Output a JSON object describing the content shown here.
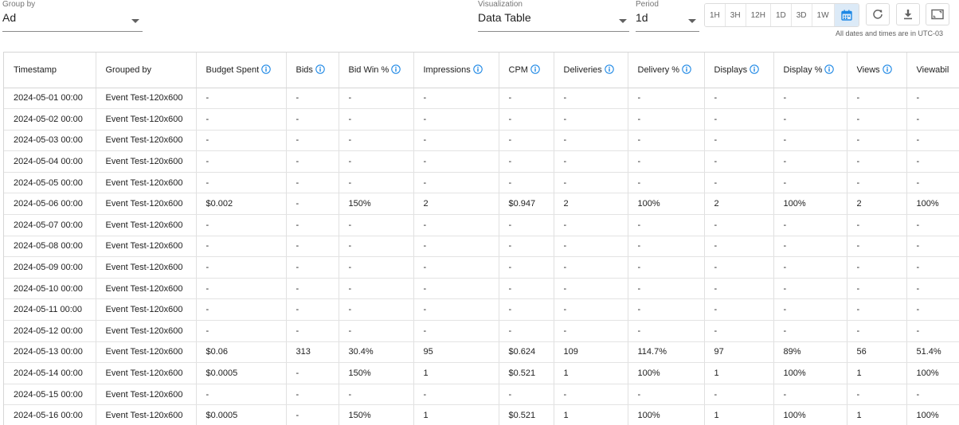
{
  "controls": {
    "group_by": {
      "label": "Group by",
      "value": "Ad"
    },
    "visualization": {
      "label": "Visualization",
      "value": "Data Table"
    },
    "period": {
      "label": "Period",
      "value": "1d"
    },
    "ranges": [
      "1H",
      "3H",
      "12H",
      "1D",
      "3D",
      "1W"
    ],
    "calendar_icon": "calendar-icon",
    "refresh_icon": "refresh-icon",
    "download_icon": "download-icon",
    "fullscreen_icon": "fullscreen-icon",
    "timezone_note": "All dates and times are in UTC-03"
  },
  "colors": {
    "accent": "#1e88e5",
    "calendar_bg": "#dceaf7"
  },
  "table": {
    "columns": [
      {
        "label": "Timestamp",
        "info": false
      },
      {
        "label": "Grouped by",
        "info": false
      },
      {
        "label": "Budget Spent",
        "info": true
      },
      {
        "label": "Bids",
        "info": true
      },
      {
        "label": "Bid Win %",
        "info": true
      },
      {
        "label": "Impressions",
        "info": true
      },
      {
        "label": "CPM",
        "info": true
      },
      {
        "label": "Deliveries",
        "info": true
      },
      {
        "label": "Delivery %",
        "info": true
      },
      {
        "label": "Displays",
        "info": true
      },
      {
        "label": "Display %",
        "info": true
      },
      {
        "label": "Views",
        "info": true
      },
      {
        "label": "Viewabil",
        "info": false
      }
    ],
    "rows": [
      [
        "2024-05-01 00:00",
        "Event Test-120x600",
        "-",
        "-",
        "-",
        "-",
        "-",
        "-",
        "-",
        "-",
        "-",
        "-",
        "-"
      ],
      [
        "2024-05-02 00:00",
        "Event Test-120x600",
        "-",
        "-",
        "-",
        "-",
        "-",
        "-",
        "-",
        "-",
        "-",
        "-",
        "-"
      ],
      [
        "2024-05-03 00:00",
        "Event Test-120x600",
        "-",
        "-",
        "-",
        "-",
        "-",
        "-",
        "-",
        "-",
        "-",
        "-",
        "-"
      ],
      [
        "2024-05-04 00:00",
        "Event Test-120x600",
        "-",
        "-",
        "-",
        "-",
        "-",
        "-",
        "-",
        "-",
        "-",
        "-",
        "-"
      ],
      [
        "2024-05-05 00:00",
        "Event Test-120x600",
        "-",
        "-",
        "-",
        "-",
        "-",
        "-",
        "-",
        "-",
        "-",
        "-",
        "-"
      ],
      [
        "2024-05-06 00:00",
        "Event Test-120x600",
        "$0.002",
        "-",
        "150%",
        "2",
        "$0.947",
        "2",
        "100%",
        "2",
        "100%",
        "2",
        "100%"
      ],
      [
        "2024-05-07 00:00",
        "Event Test-120x600",
        "-",
        "-",
        "-",
        "-",
        "-",
        "-",
        "-",
        "-",
        "-",
        "-",
        "-"
      ],
      [
        "2024-05-08 00:00",
        "Event Test-120x600",
        "-",
        "-",
        "-",
        "-",
        "-",
        "-",
        "-",
        "-",
        "-",
        "-",
        "-"
      ],
      [
        "2024-05-09 00:00",
        "Event Test-120x600",
        "-",
        "-",
        "-",
        "-",
        "-",
        "-",
        "-",
        "-",
        "-",
        "-",
        "-"
      ],
      [
        "2024-05-10 00:00",
        "Event Test-120x600",
        "-",
        "-",
        "-",
        "-",
        "-",
        "-",
        "-",
        "-",
        "-",
        "-",
        "-"
      ],
      [
        "2024-05-11 00:00",
        "Event Test-120x600",
        "-",
        "-",
        "-",
        "-",
        "-",
        "-",
        "-",
        "-",
        "-",
        "-",
        "-"
      ],
      [
        "2024-05-12 00:00",
        "Event Test-120x600",
        "-",
        "-",
        "-",
        "-",
        "-",
        "-",
        "-",
        "-",
        "-",
        "-",
        "-"
      ],
      [
        "2024-05-13 00:00",
        "Event Test-120x600",
        "$0.06",
        "313",
        "30.4%",
        "95",
        "$0.624",
        "109",
        "114.7%",
        "97",
        "89%",
        "56",
        "51.4%"
      ],
      [
        "2024-05-14 00:00",
        "Event Test-120x600",
        "$0.0005",
        "-",
        "150%",
        "1",
        "$0.521",
        "1",
        "100%",
        "1",
        "100%",
        "1",
        "100%"
      ],
      [
        "2024-05-15 00:00",
        "Event Test-120x600",
        "-",
        "-",
        "-",
        "-",
        "-",
        "-",
        "-",
        "-",
        "-",
        "-",
        "-"
      ],
      [
        "2024-05-16 00:00",
        "Event Test-120x600",
        "$0.0005",
        "-",
        "150%",
        "1",
        "$0.521",
        "1",
        "100%",
        "1",
        "100%",
        "1",
        "100%"
      ]
    ]
  }
}
